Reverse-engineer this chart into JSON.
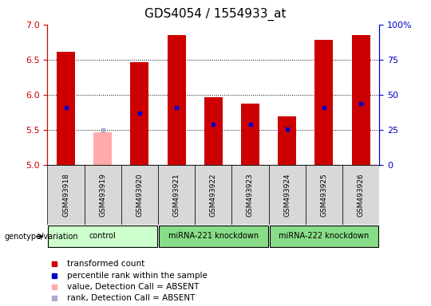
{
  "title": "GDS4054 / 1554933_at",
  "samples": [
    "GSM493918",
    "GSM493919",
    "GSM493920",
    "GSM493921",
    "GSM493922",
    "GSM493923",
    "GSM493924",
    "GSM493925",
    "GSM493926"
  ],
  "bar_bottoms": [
    5.0,
    5.0,
    5.0,
    5.0,
    5.0,
    5.0,
    5.0,
    5.0,
    5.0
  ],
  "bar_tops": [
    6.61,
    5.47,
    6.47,
    6.85,
    5.97,
    5.88,
    5.7,
    6.78,
    6.85
  ],
  "bar_absent": [
    false,
    true,
    false,
    false,
    false,
    false,
    false,
    false,
    false
  ],
  "percentile_values": [
    5.82,
    5.5,
    5.74,
    5.82,
    5.58,
    5.58,
    5.51,
    5.82,
    5.88
  ],
  "percentile_absent": [
    false,
    true,
    false,
    false,
    false,
    false,
    false,
    false,
    false
  ],
  "ylim": [
    5.0,
    7.0
  ],
  "yticks": [
    5.0,
    5.5,
    6.0,
    6.5,
    7.0
  ],
  "right_yticks": [
    0,
    25,
    50,
    75,
    100
  ],
  "right_ylim": [
    0,
    100
  ],
  "group_configs": [
    {
      "label": "control",
      "start": 0,
      "end": 3,
      "color": "#ccffcc"
    },
    {
      "label": "miRNA-221 knockdown",
      "start": 3,
      "end": 6,
      "color": "#88dd88"
    },
    {
      "label": "miRNA-222 knockdown",
      "start": 6,
      "end": 9,
      "color": "#88dd88"
    }
  ],
  "bar_color": "#cc0000",
  "bar_absent_color": "#ffaaaa",
  "percentile_color": "#0000cc",
  "percentile_absent_color": "#aaaacc",
  "plot_bg_color": "#ffffff",
  "left_axis_color": "#cc0000",
  "right_axis_color": "#0000cc",
  "bar_width": 0.5,
  "legend_items": [
    {
      "color": "#cc0000",
      "label": "transformed count"
    },
    {
      "color": "#0000cc",
      "label": "percentile rank within the sample"
    },
    {
      "color": "#ffaaaa",
      "label": "value, Detection Call = ABSENT"
    },
    {
      "color": "#aaaacc",
      "label": "rank, Detection Call = ABSENT"
    }
  ]
}
